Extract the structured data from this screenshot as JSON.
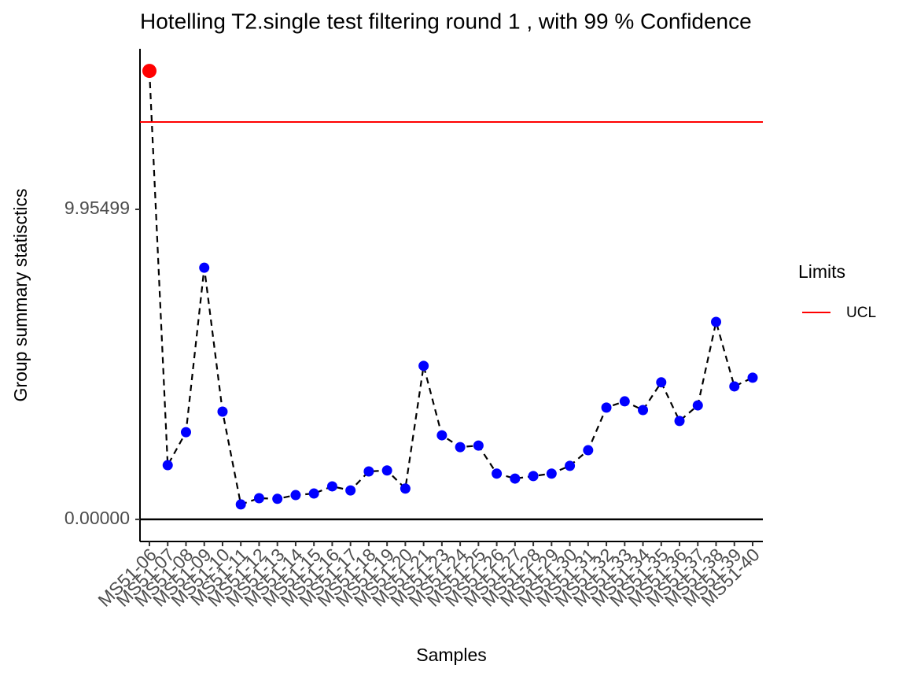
{
  "chart_data": {
    "type": "line",
    "title": "Hotelling  T2.single  test filtering round  1 , with  99 % Confidence",
    "x_label": "Samples",
    "y_label": "Group summary statisctics",
    "categories": [
      "MS51-06",
      "MS51-07",
      "MS51-08",
      "MS51-09",
      "MS51-10",
      "MS51-11",
      "MS51-12",
      "MS51-13",
      "MS51-14",
      "MS51-15",
      "MS51-16",
      "MS51-17",
      "MS51-18",
      "MS51-19",
      "MS51-20",
      "MS51-21",
      "MS51-23",
      "MS51-24",
      "MS51-25",
      "MS51-26",
      "MS51-27",
      "MS51-28",
      "MS51-29",
      "MS51-30",
      "MS51-31",
      "MS51-32",
      "MS51-33",
      "MS51-34",
      "MS51-35",
      "MS51-36",
      "MS51-37",
      "MS51-38",
      "MS51-39",
      "MS51-40"
    ],
    "values": [
      14.4,
      1.74,
      2.8,
      8.08,
      3.46,
      0.48,
      0.68,
      0.66,
      0.78,
      0.83,
      1.06,
      0.93,
      1.54,
      1.57,
      0.99,
      4.93,
      2.7,
      2.32,
      2.37,
      1.47,
      1.31,
      1.39,
      1.47,
      1.72,
      2.22,
      3.59,
      3.79,
      3.51,
      4.4,
      3.16,
      3.66,
      6.34,
      4.27,
      4.55
    ],
    "color": "#0000ff",
    "outlier_color": "#ff0000",
    "ucl": 12.76,
    "ucl_color": "#ff0000",
    "reference_line": 0,
    "legend_title": "Limits",
    "legend_entries": [
      "UCL"
    ],
    "legend_position": "right",
    "ylim": [
      -0.71,
      15.11
    ],
    "yticks": [
      {
        "value": 0,
        "label": "0.00000"
      },
      9.95499
    ]
  }
}
